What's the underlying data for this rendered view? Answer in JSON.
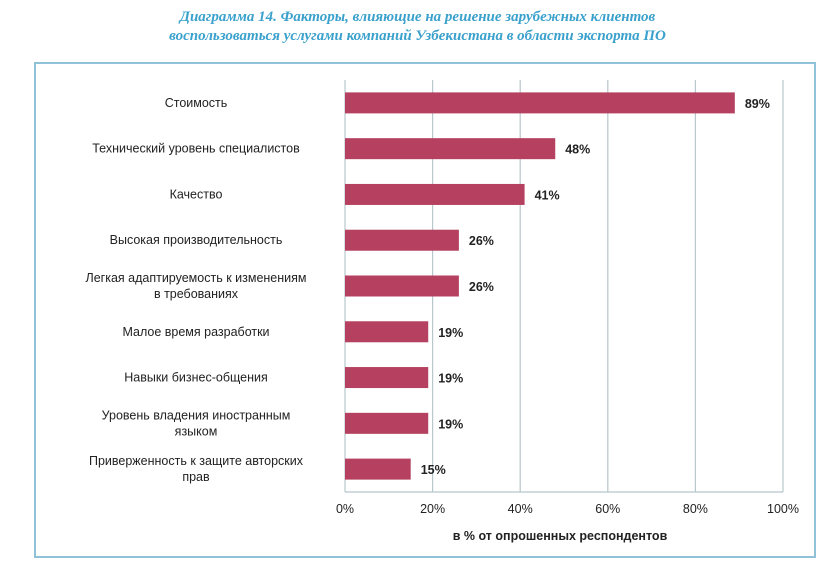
{
  "title": {
    "line1": "Диаграмма 14. Факторы, влияющие на решение зарубежных клиентов",
    "line2": "воспользоваться услугами компаний Узбекистана в области экспорта ПО"
  },
  "chart_data": {
    "type": "bar",
    "orientation": "horizontal",
    "categories": [
      [
        "Стоимость"
      ],
      [
        "Технический уровень специалистов"
      ],
      [
        "Качество"
      ],
      [
        "Высокая производительность"
      ],
      [
        "Легкая адаптируемость к изменениям",
        "в требованиях"
      ],
      [
        "Малое время разработки"
      ],
      [
        "Навыки бизнес-общения"
      ],
      [
        "Уровень владения иностранным",
        "языком"
      ],
      [
        "Приверженность к защите авторских",
        "прав"
      ]
    ],
    "values": [
      89,
      48,
      41,
      26,
      26,
      19,
      19,
      19,
      15
    ],
    "value_labels": [
      "89%",
      "48%",
      "41%",
      "26%",
      "26%",
      "19%",
      "19%",
      "19%",
      "15%"
    ],
    "xlabel": "в % от опрошенных респондентов",
    "xlim": [
      0,
      100
    ],
    "xticks": [
      0,
      20,
      40,
      60,
      80,
      100
    ],
    "xtick_labels": [
      "0%",
      "20%",
      "40%",
      "60%",
      "80%",
      "100%"
    ],
    "grid": true,
    "bar_color": "#b5405f",
    "grid_color": "#b8c7cc"
  }
}
